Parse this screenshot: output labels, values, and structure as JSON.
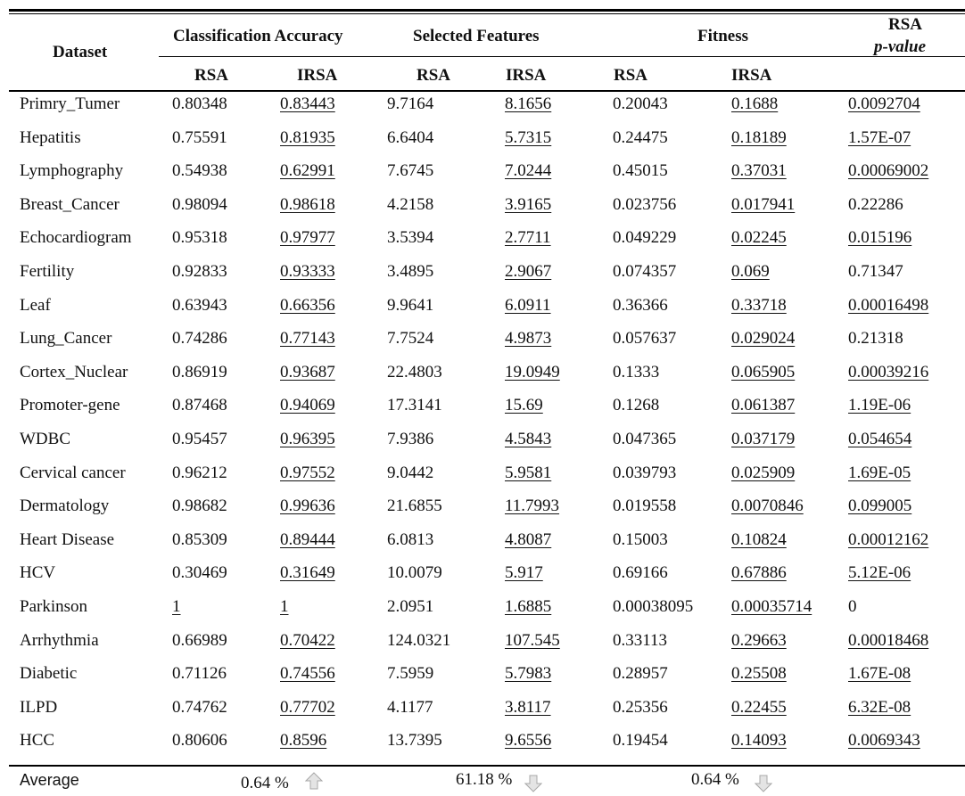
{
  "table": {
    "headers": {
      "dataset": "Dataset",
      "classification_accuracy": "Classification Accuracy",
      "selected_features": "Selected Features",
      "fitness": "Fitness",
      "rsa_pvalue_line1": "RSA",
      "rsa_pvalue_line2": "p-value",
      "sub": [
        "RSA",
        "IRSA",
        "RSA",
        "IRSA",
        "RSA",
        "IRSA"
      ]
    },
    "rows": [
      {
        "dataset": "Primry_Tumer",
        "acc_rsa": "0.80348",
        "acc_irsa": "0.83443",
        "feat_rsa": "9.7164",
        "feat_irsa": "8.1656",
        "fit_rsa": "0.20043",
        "fit_irsa": "0.1688",
        "pvalue": "0.0092704",
        "u": [
          false,
          true,
          false,
          true,
          false,
          true,
          true
        ]
      },
      {
        "dataset": "Hepatitis",
        "acc_rsa": "0.75591",
        "acc_irsa": "0.81935",
        "feat_rsa": "6.6404",
        "feat_irsa": "5.7315",
        "fit_rsa": "0.24475",
        "fit_irsa": "0.18189",
        "pvalue": "1.57E-07",
        "u": [
          false,
          true,
          false,
          true,
          false,
          true,
          true
        ]
      },
      {
        "dataset": "Lymphography",
        "acc_rsa": "0.54938",
        "acc_irsa": "0.62991",
        "feat_rsa": "7.6745",
        "feat_irsa": "7.0244",
        "fit_rsa": "0.45015",
        "fit_irsa": "0.37031",
        "pvalue": "0.00069002",
        "u": [
          false,
          true,
          false,
          true,
          false,
          true,
          true
        ]
      },
      {
        "dataset": "Breast_Cancer",
        "acc_rsa": "0.98094",
        "acc_irsa": "0.98618",
        "feat_rsa": "4.2158",
        "feat_irsa": "3.9165",
        "fit_rsa": "0.023756",
        "fit_irsa": "0.017941",
        "pvalue": "0.22286",
        "u": [
          false,
          true,
          false,
          true,
          false,
          true,
          false
        ]
      },
      {
        "dataset": "Echocardiogram",
        "acc_rsa": "0.95318",
        "acc_irsa": "0.97977",
        "feat_rsa": "3.5394",
        "feat_irsa": "2.7711",
        "fit_rsa": "0.049229",
        "fit_irsa": "0.02245",
        "pvalue": "0.015196",
        "u": [
          false,
          true,
          false,
          true,
          false,
          true,
          true
        ]
      },
      {
        "dataset": "Fertility",
        "acc_rsa": "0.92833",
        "acc_irsa": "0.93333",
        "feat_rsa": "3.4895",
        "feat_irsa": "2.9067",
        "fit_rsa": "0.074357",
        "fit_irsa": "0.069",
        "pvalue": "0.71347",
        "u": [
          false,
          true,
          false,
          true,
          false,
          true,
          false
        ]
      },
      {
        "dataset": "Leaf",
        "acc_rsa": "0.63943",
        "acc_irsa": "0.66356",
        "feat_rsa": "9.9641",
        "feat_irsa": "6.0911",
        "fit_rsa": "0.36366",
        "fit_irsa": "0.33718",
        "pvalue": "0.00016498",
        "u": [
          false,
          true,
          false,
          true,
          false,
          true,
          true
        ]
      },
      {
        "dataset": "Lung_Cancer",
        "acc_rsa": "0.74286",
        "acc_irsa": "0.77143",
        "feat_rsa": "7.7524",
        "feat_irsa": "4.9873",
        "fit_rsa": "0.057637",
        "fit_irsa": "0.029024",
        "pvalue": "0.21318",
        "u": [
          false,
          true,
          false,
          true,
          false,
          true,
          false
        ]
      },
      {
        "dataset": "Cortex_Nuclear",
        "acc_rsa": "0.86919",
        "acc_irsa": "0.93687",
        "feat_rsa": "22.4803",
        "feat_irsa": "19.0949",
        "fit_rsa": "0.1333",
        "fit_irsa": "0.065905",
        "pvalue": "0.00039216",
        "u": [
          false,
          true,
          false,
          true,
          false,
          true,
          true
        ]
      },
      {
        "dataset": "Promoter-gene",
        "acc_rsa": "0.87468",
        "acc_irsa": "0.94069",
        "feat_rsa": "17.3141",
        "feat_irsa": "15.69",
        "fit_rsa": "0.1268",
        "fit_irsa": "0.061387",
        "pvalue": "1.19E-06",
        "u": [
          false,
          true,
          false,
          true,
          false,
          true,
          true
        ]
      },
      {
        "dataset": "WDBC",
        "acc_rsa": "0.95457",
        "acc_irsa": "0.96395",
        "feat_rsa": "7.9386",
        "feat_irsa": "4.5843",
        "fit_rsa": "0.047365",
        "fit_irsa": "0.037179",
        "pvalue": "0.054654",
        "u": [
          false,
          true,
          false,
          true,
          false,
          true,
          true
        ]
      },
      {
        "dataset": "Cervical cancer",
        "acc_rsa": "0.96212",
        "acc_irsa": "0.97552",
        "feat_rsa": "9.0442",
        "feat_irsa": "5.9581",
        "fit_rsa": "0.039793",
        "fit_irsa": "0.025909",
        "pvalue": "1.69E-05",
        "u": [
          false,
          true,
          false,
          true,
          false,
          true,
          true
        ]
      },
      {
        "dataset": "Dermatology",
        "acc_rsa": "0.98682",
        "acc_irsa": "0.99636",
        "feat_rsa": "21.6855",
        "feat_irsa": "11.7993",
        "fit_rsa": "0.019558",
        "fit_irsa": "0.0070846",
        "pvalue": "0.099005",
        "u": [
          false,
          true,
          false,
          true,
          false,
          true,
          true
        ]
      },
      {
        "dataset": "Heart Disease",
        "acc_rsa": "0.85309",
        "acc_irsa": "0.89444",
        "feat_rsa": "6.0813",
        "feat_irsa": "4.8087",
        "fit_rsa": "0.15003",
        "fit_irsa": "0.10824",
        "pvalue": "0.00012162",
        "u": [
          false,
          true,
          false,
          true,
          false,
          true,
          true
        ]
      },
      {
        "dataset": "HCV",
        "acc_rsa": "0.30469",
        "acc_irsa": "0.31649",
        "feat_rsa": "10.0079",
        "feat_irsa": "5.917",
        "fit_rsa": "0.69166",
        "fit_irsa": "0.67886",
        "pvalue": "5.12E-06",
        "u": [
          false,
          true,
          false,
          true,
          false,
          true,
          true
        ]
      },
      {
        "dataset": "Parkinson",
        "acc_rsa": "1",
        "acc_irsa": "1",
        "feat_rsa": "2.0951",
        "feat_irsa": "1.6885",
        "fit_rsa": "0.00038095",
        "fit_irsa": "0.00035714",
        "pvalue": "0",
        "u": [
          true,
          true,
          false,
          true,
          false,
          true,
          false
        ]
      },
      {
        "dataset": "Arrhythmia",
        "acc_rsa": "0.66989",
        "acc_irsa": "0.70422",
        "feat_rsa": "124.0321",
        "feat_irsa": "107.545",
        "fit_rsa": "0.33113",
        "fit_irsa": "0.29663",
        "pvalue": "0.00018468",
        "u": [
          false,
          true,
          false,
          true,
          false,
          true,
          true
        ]
      },
      {
        "dataset": "Diabetic",
        "acc_rsa": "0.71126",
        "acc_irsa": "0.74556",
        "feat_rsa": "7.5959",
        "feat_irsa": "5.7983",
        "fit_rsa": "0.28957",
        "fit_irsa": "0.25508",
        "pvalue": "1.67E-08",
        "u": [
          false,
          true,
          false,
          true,
          false,
          true,
          true
        ]
      },
      {
        "dataset": "ILPD",
        "acc_rsa": "0.74762",
        "acc_irsa": "0.77702",
        "feat_rsa": "4.1177",
        "feat_irsa": "3.8117",
        "fit_rsa": "0.25356",
        "fit_irsa": "0.22455",
        "pvalue": "6.32E-08",
        "u": [
          false,
          true,
          false,
          true,
          false,
          true,
          true
        ]
      },
      {
        "dataset": "HCC",
        "acc_rsa": "0.80606",
        "acc_irsa": "0.8596",
        "feat_rsa": "13.7395",
        "feat_irsa": "9.6556",
        "fit_rsa": "0.19454",
        "fit_irsa": "0.14093",
        "pvalue": "0.0069343",
        "u": [
          false,
          true,
          false,
          true,
          false,
          true,
          true
        ]
      }
    ],
    "average": {
      "label": "Average",
      "accuracy": "0.64 %",
      "accuracy_arrow": "arrow-up-icon",
      "features": "61.18 %",
      "features_arrow": "arrow-down-icon",
      "fitness": "0.64 %",
      "fitness_arrow": "arrow-down-icon"
    }
  }
}
